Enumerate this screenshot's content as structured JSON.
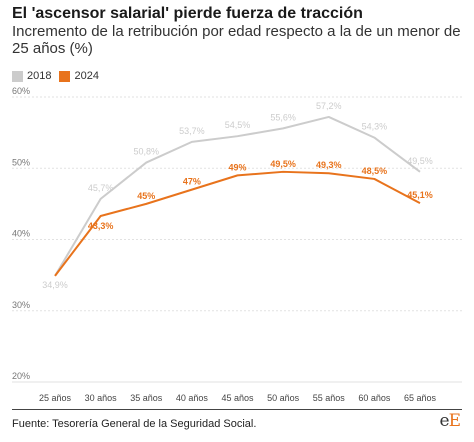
{
  "chart_data": {
    "type": "line",
    "title": "El 'ascensor salarial' pierde fuerza de tracción",
    "subtitle": "Incremento de la retribución por edad respecto a la de un menor de 25 años (%)",
    "categories": [
      "25 años",
      "30 años",
      "35 años",
      "40 años",
      "45 años",
      "50 años",
      "55 años",
      "60 años",
      "65 años"
    ],
    "series": [
      {
        "name": "2018",
        "color": "#cccccc",
        "values": [
          34.9,
          45.7,
          50.8,
          53.7,
          54.5,
          55.6,
          57.2,
          54.3,
          49.5
        ],
        "labels": [
          "34,9%",
          "45,7%",
          "50,8%",
          "53,7%",
          "54,5%",
          "55,6%",
          "57,2%",
          "54,3%",
          "49,5%"
        ]
      },
      {
        "name": "2024",
        "color": "#e8731c",
        "values": [
          34.9,
          43.3,
          45,
          47,
          49,
          49.5,
          49.3,
          48.5,
          45.1
        ],
        "labels": [
          "",
          "43,3%",
          "45%",
          "47%",
          "49%",
          "49,5%",
          "49,3%",
          "48,5%",
          "45,1%"
        ]
      }
    ],
    "y_ticks": [
      20,
      30,
      40,
      50,
      60
    ],
    "y_tick_labels": [
      "20%",
      "30%",
      "40%",
      "50%",
      "60%"
    ],
    "ylim": [
      20,
      60
    ],
    "grid": true,
    "legend_position": "top-left"
  },
  "footer": {
    "source": "Fuente: Tesorería General de la Seguridad Social.",
    "logo_main": "e",
    "logo_accent": "E"
  }
}
